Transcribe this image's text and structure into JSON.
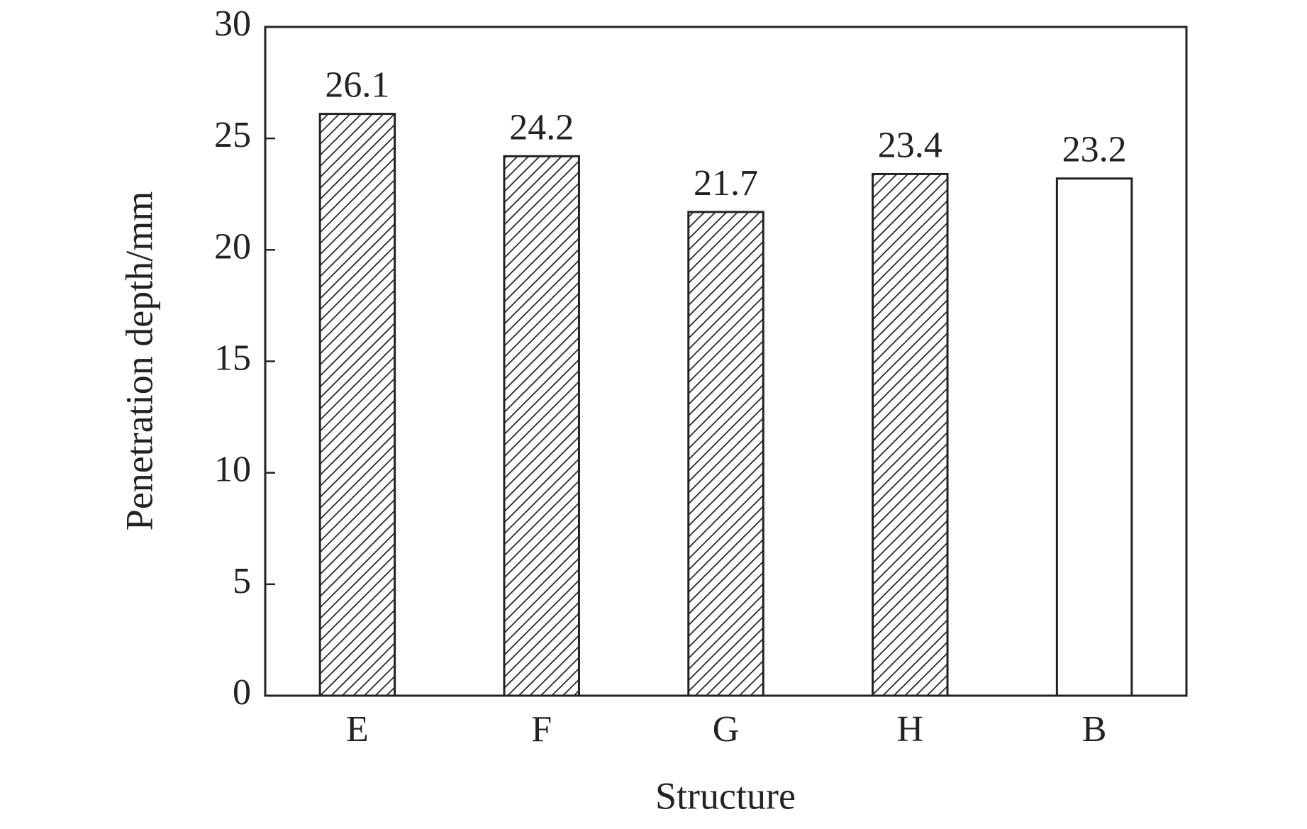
{
  "chart_data": {
    "type": "bar",
    "x_label": "Structure",
    "y_label": "Penetration depth/mm",
    "categories": [
      "E",
      "F",
      "G",
      "H",
      "B"
    ],
    "values": [
      26.1,
      24.2,
      21.7,
      23.4,
      23.2
    ],
    "patterns": [
      "hatch",
      "hatch",
      "hatch",
      "hatch",
      "none"
    ],
    "color": "#222222",
    "ylim": [
      0,
      30
    ],
    "yticks": [
      0,
      5,
      10,
      15,
      20,
      25,
      30
    ],
    "grid": false
  }
}
